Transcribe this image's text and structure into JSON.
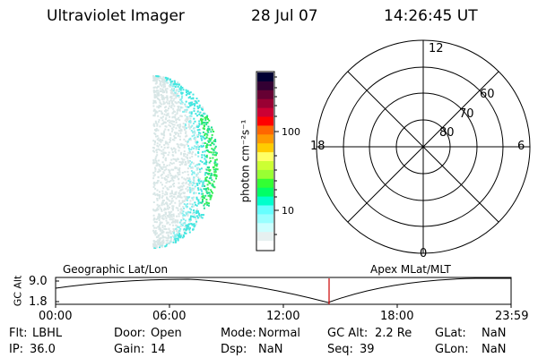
{
  "header": {
    "instrument": "Ultraviolet Imager",
    "date": "28 Jul 07",
    "time": "14:26:45 UT"
  },
  "colorbar": {
    "label": "photon cm⁻²s⁻¹",
    "ticks": [
      "100",
      "10"
    ],
    "colors": [
      "#000033",
      "#330033",
      "#660033",
      "#990033",
      "#cc0033",
      "#ff0000",
      "#ff6600",
      "#ff9900",
      "#ffcc00",
      "#ffff66",
      "#ccff33",
      "#99ff33",
      "#33ff33",
      "#00ff66",
      "#00ffcc",
      "#66ffff",
      "#99ffff",
      "#ccffff",
      "#e6f0f0",
      "#ffffff"
    ]
  },
  "polar": {
    "mlt_labels": {
      "top": "12",
      "left": "18",
      "right": "6",
      "bottom": "0"
    },
    "lat_labels": [
      "60",
      "70",
      "80"
    ]
  },
  "timeline": {
    "left_label": "Geographic Lat/Lon",
    "right_label": "Apex  MLat/MLT",
    "y_axis_label": "GC Alt",
    "y_ticks": [
      "9.0",
      "1.8"
    ],
    "x_ticks": [
      "00:00",
      "06:00",
      "12:00",
      "18:00",
      "23:59"
    ],
    "marker_color": "#cc0000"
  },
  "status": {
    "flt_label": "Flt:",
    "flt_value": "LBHL",
    "door_label": "Door:",
    "door_value": "Open",
    "mode_label": "Mode:",
    "mode_value": "Normal",
    "gcalt_label": "GC Alt:",
    "gcalt_value": "2.2 Re",
    "glat_label": "GLat:",
    "glat_value": "NaN",
    "ip_label": "IP:",
    "ip_value": "36.0",
    "gain_label": "Gain:",
    "gain_value": "14",
    "dsp_label": "Dsp:",
    "dsp_value": "NaN",
    "seq_label": "Seq:",
    "seq_value": "39",
    "glon_label": "GLon:",
    "glon_value": "NaN"
  }
}
